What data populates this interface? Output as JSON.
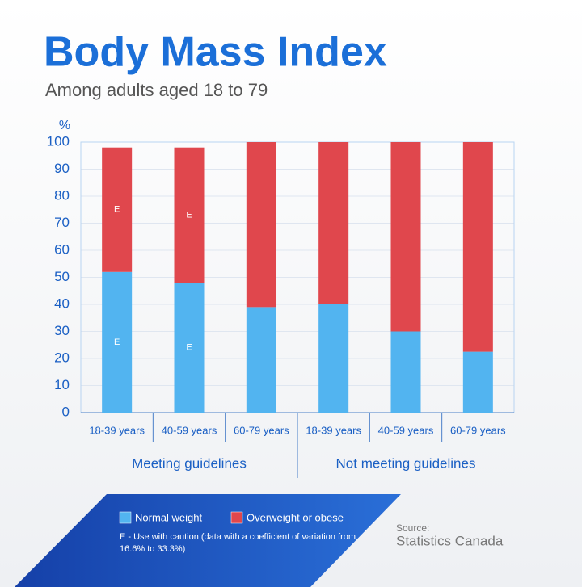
{
  "chart_data": {
    "type": "stacked-bar",
    "title": "Body Mass Index",
    "subtitle": "Among adults aged 18 to 79",
    "y_label": "%",
    "categories": [
      "18-39 years",
      "40-59 years",
      "60-79 years",
      "18-39 years",
      "40-59 years",
      "60-79 years"
    ],
    "groups": [
      "Meeting guidelines",
      "Not meeting guidelines"
    ],
    "series": [
      {
        "name": "Normal weight",
        "color": "#52b4f0",
        "values": [
          52,
          48,
          39,
          40,
          30,
          22.5
        ],
        "notes": [
          "E",
          "E",
          null,
          null,
          null,
          null
        ]
      },
      {
        "name": "Overweight or obese",
        "color": "#e0474d",
        "values": [
          46,
          50,
          61,
          60,
          70,
          77.5
        ],
        "notes": [
          "E",
          "E",
          null,
          null,
          null,
          null
        ]
      }
    ],
    "ylim": [
      0,
      100
    ],
    "yticks": [
      0,
      10,
      20,
      30,
      40,
      50,
      60,
      70,
      80,
      90,
      100
    ],
    "grid": true,
    "footnote": "E - Use with caution (data with a coefficient of variation from 16.6% to 33.3%)",
    "source_label": "Source:",
    "source": "Statistics Canada"
  }
}
